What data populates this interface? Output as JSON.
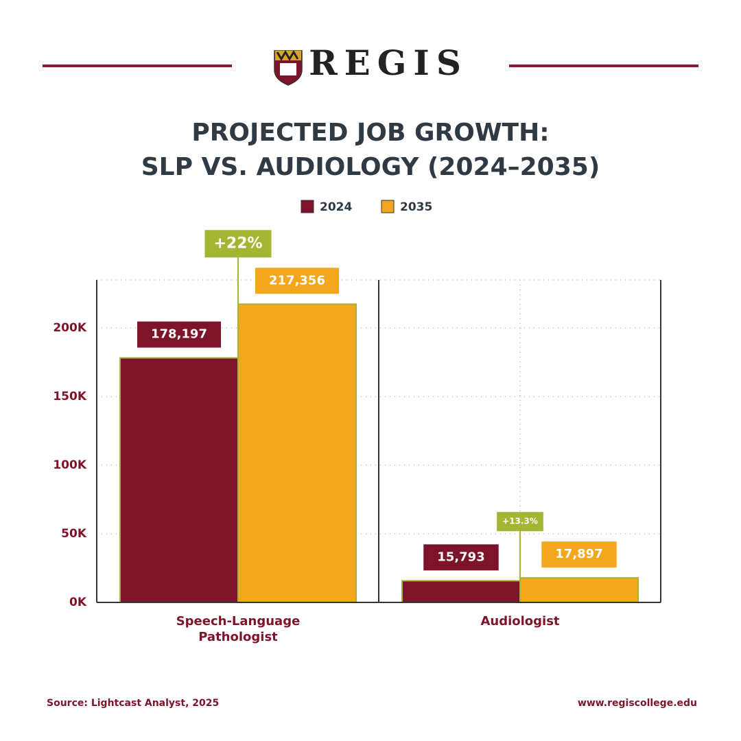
{
  "brand": "REGIS",
  "chart_data": {
    "type": "bar",
    "title": [
      "PROJECTED JOB GROWTH:",
      "SLP VS. AUDIOLOGY (2024–2035)"
    ],
    "categories": [
      "Speech-Language Pathologist",
      "Audiologist"
    ],
    "series": [
      {
        "name": "2024",
        "color": "#7d1429",
        "values": [
          178197,
          15793
        ],
        "value_labels": [
          "178,197",
          "15,793"
        ]
      },
      {
        "name": "2035",
        "color": "#f2a71e",
        "values": [
          217356,
          17897
        ],
        "value_labels": [
          "217,356",
          "17,897"
        ]
      }
    ],
    "annotations": [
      "+22%",
      "+13.3%"
    ],
    "ylim": [
      0,
      235000
    ],
    "yticks": [
      {
        "value": 0,
        "label": "0K"
      },
      {
        "value": 50000,
        "label": "50K"
      },
      {
        "value": 100000,
        "label": "100K"
      },
      {
        "value": 150000,
        "label": "150K"
      },
      {
        "value": 200000,
        "label": "200K"
      }
    ],
    "grid": true,
    "source": "Source: Lightcast Analyst, 2025",
    "website": "www.regiscollege.edu"
  }
}
